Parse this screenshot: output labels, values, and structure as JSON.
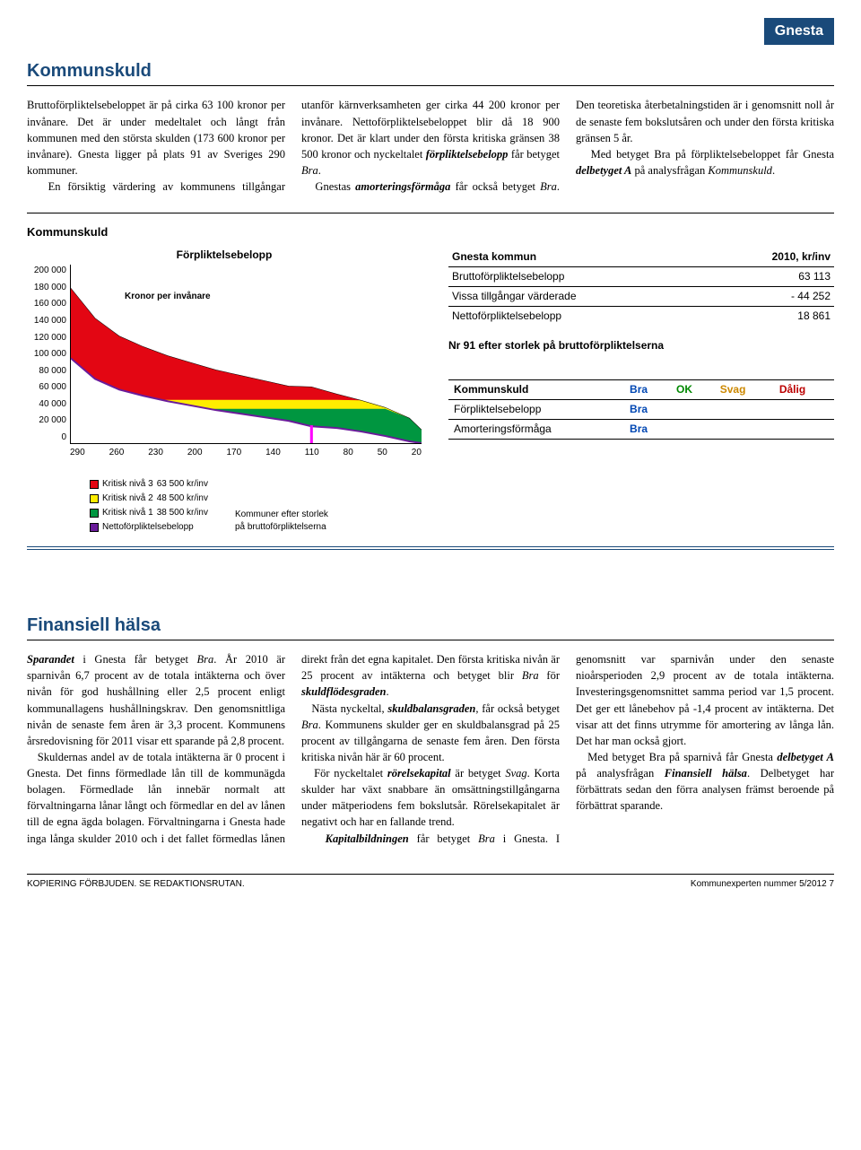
{
  "header": {
    "municipality": "Gnesta"
  },
  "section1": {
    "title": "Kommunskuld",
    "body_html": "Bruttoförpliktelsebeloppet är på cirka 63 100 kronor per invånare. Det är under medeltalet och långt från kommunen med den största skulden (173 600 kronor per invånare). Gnesta ligger på plats 91 av Sveriges 290 kommuner.<br>&nbsp;&nbsp;&nbsp;En försiktig värdering av kommunens tillgångar utanför kärnverksamheten ger cirka 44 200 kronor per invånare. Nettoförpliktelsebeloppet blir då 18 900 kronor. Det är klart under den första kritiska gränsen 38 500 kronor och nyckeltalet <strong class='bolditalic'>förpliktelsebelopp</strong> får betyget <em class='ital'>Bra</em>.<br>&nbsp;&nbsp;&nbsp;Gnestas <strong class='bolditalic'>amorteringsförmåga</strong> får också betyget <em class='ital'>Bra</em>. Den teoretiska återbetalningstiden är i genomsnitt noll år de senaste fem bokslutsåren och under den första kritiska gränsen 5 år.<br>&nbsp;&nbsp;&nbsp;Med betyget Bra på förpliktelsebeloppet får Gnesta <strong class='bolditalic'>delbetyget A</strong> på analysfrågan <em class='ital'>Kommunskuld</em>."
  },
  "chart": {
    "block_title": "Kommunskuld",
    "inner_title": "Förpliktelsebelopp",
    "y_label": "Kronor per\ninvånare",
    "y_ticks": [
      "0",
      "20 000",
      "40 000",
      "60 000",
      "80 000",
      "100 000",
      "120 000",
      "140 000",
      "160 000",
      "180 000",
      "200 000"
    ],
    "y_max": 200000,
    "x_ticks": [
      "290",
      "260",
      "230",
      "200",
      "170",
      "140",
      "110",
      "80",
      "50",
      "20"
    ],
    "colors": {
      "kritisk3": "#e30613",
      "kritisk2": "#ffed00",
      "kritisk1": "#009640",
      "netto": "#6a1b9a",
      "marker": "#ff00ff",
      "axis": "#000000"
    },
    "thresholds": {
      "k1": 38500,
      "k2": 48500,
      "k3": 63500
    },
    "brutto_curve": [
      [
        0,
        173600
      ],
      [
        20,
        140000
      ],
      [
        40,
        120000
      ],
      [
        60,
        108000
      ],
      [
        80,
        98000
      ],
      [
        100,
        90000
      ],
      [
        120,
        82000
      ],
      [
        140,
        76000
      ],
      [
        160,
        70000
      ],
      [
        180,
        64000
      ],
      [
        199,
        63113
      ],
      [
        220,
        55000
      ],
      [
        240,
        48000
      ],
      [
        260,
        40000
      ],
      [
        280,
        28000
      ],
      [
        290,
        15000
      ]
    ],
    "netto_curve": [
      [
        0,
        95000
      ],
      [
        20,
        72000
      ],
      [
        40,
        60000
      ],
      [
        60,
        53000
      ],
      [
        80,
        47000
      ],
      [
        100,
        42000
      ],
      [
        120,
        37000
      ],
      [
        140,
        33000
      ],
      [
        160,
        29000
      ],
      [
        180,
        25000
      ],
      [
        199,
        18861
      ],
      [
        220,
        17000
      ],
      [
        240,
        13000
      ],
      [
        260,
        8000
      ],
      [
        280,
        2000
      ],
      [
        290,
        0
      ]
    ],
    "marker_x": 199,
    "x_max": 290,
    "legend": {
      "items": [
        {
          "color": "#e30613",
          "border": "#000",
          "label": "Kritisk nivå 3",
          "value": "63 500 kr/inv"
        },
        {
          "color": "#ffed00",
          "border": "#000",
          "label": "Kritisk nivå 2",
          "value": "48 500 kr/inv"
        },
        {
          "color": "#009640",
          "border": "#000",
          "label": "Kritisk nivå 1",
          "value": "38 500 kr/inv"
        },
        {
          "color": "#6a1b9a",
          "border": "#000",
          "label": "Nettoförpliktelsebelopp",
          "value": ""
        }
      ],
      "caption": "Kommuner efter storlek\npå bruttoförpliktelserna"
    }
  },
  "info_table": {
    "header_left": "Gnesta kommun",
    "header_right": "2010, kr/inv",
    "rows": [
      {
        "label": "Bruttoförpliktelsebelopp",
        "value": "63 113",
        "border": true
      },
      {
        "label": "Vissa tillgångar värderade",
        "value": "- 44 252",
        "border": true
      },
      {
        "label": "Nettoförpliktelsebelopp",
        "value": "18 861",
        "border": false
      }
    ],
    "note": "Nr 91 efter storlek på bruttoförpliktelserna"
  },
  "rating": {
    "header": [
      "Kommunskuld",
      "Bra",
      "OK",
      "Svag",
      "Dålig"
    ],
    "rows": [
      {
        "label": "Förpliktelsebelopp",
        "col": "Bra"
      },
      {
        "label": "Amorteringsförmåga",
        "col": "Bra"
      }
    ]
  },
  "section2": {
    "title": "Finansiell hälsa",
    "body_html": "<strong class='bolditalic'>Sparandet</strong> i Gnesta får betyget <em class='ital'>Bra</em>. År 2010 är sparnivån 6,7 procent av de totala intäkterna och över nivån för god hushållning eller 2,5 procent enligt kommunallagens hushållningskrav. Den genomsnittliga nivån de senaste fem åren är 3,3 procent. Kommunens årsredovisning för 2011 visar ett sparande på 2,8 procent.<br>&nbsp;&nbsp;&nbsp;Skuldernas andel av de totala intäkterna är 0 procent i Gnesta. Det finns förmedlade lån till de kommunägda bolagen. Förmedlade lån innebär normalt att förvaltningarna lånar långt och förmedlar en del av lånen till de egna ägda bolagen. Förvaltningarna i Gnesta hade inga långa skulder 2010 och i det fallet förmedlas lånen direkt från det egna kapitalet. Den första kritiska nivån är 25 procent av intäkterna och betyget blir <em class='ital'>Bra</em> för <strong class='bolditalic'>skuldflödesgraden</strong>.<br>&nbsp;&nbsp;&nbsp;Nästa nyckeltal, <strong class='bolditalic'>skuldbalansgraden</strong>, får också betyget <em class='ital'>Bra</em>. Kommunens skulder ger en skuldbalansgrad på 25 procent av tillgångarna de senaste fem åren. Den första kritiska nivån här är 60 procent.<br>&nbsp;&nbsp;&nbsp;För nyckeltalet <strong class='bolditalic'>rörelsekapital</strong> är betyget <em class='ital'>Svag</em>. Korta skulder har växt snabbare än omsättningstillgångarna under mätperiodens fem bokslutsår. Rörelsekapitalet är negativt och har en fallande trend.<br>&nbsp;&nbsp;&nbsp;<strong class='bolditalic'>Kapitalbildningen</strong> får betyget <em class='ital'>Bra</em> i Gnesta. I genomsnitt var sparnivån under den senaste nioårsperioden 2,9 procent av de totala intäkterna. Investeringsgenomsnittet samma period var 1,5 procent. Det ger ett lånebehov på -1,4 procent av intäkterna. Det visar att det finns utrymme för amortering av långa lån. Det har man också gjort.<br>&nbsp;&nbsp;&nbsp;Med betyget Bra på sparnivå får Gnesta <strong class='bolditalic'>delbetyget A</strong> på analysfrågan <strong class='bolditalic'>Finansiell hälsa</strong>. Delbetyget har förbättrats sedan den förra analysen främst beroende på förbättrat sparande."
  },
  "footer": {
    "left": "KOPIERING FÖRBJUDEN. SE REDAKTIONSRUTAN.",
    "right": "Kommunexperten nummer 5/2012   7"
  }
}
